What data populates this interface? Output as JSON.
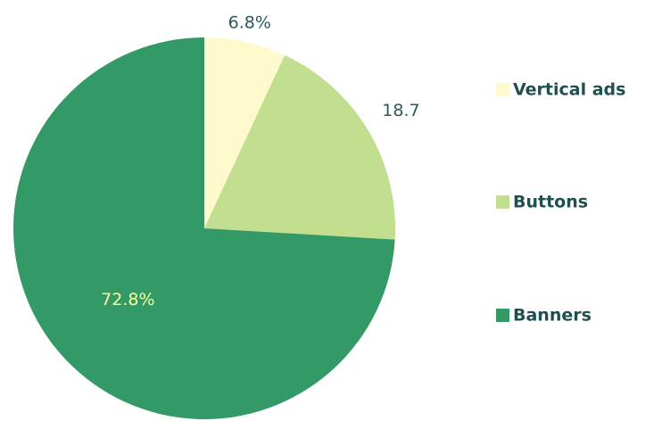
{
  "chart_data": {
    "type": "pie",
    "categories": [
      "Vertical ads",
      "Buttons",
      "Banners"
    ],
    "values": [
      6.8,
      18.7,
      72.8
    ],
    "value_labels": [
      "6.8%",
      "18.7",
      "72.8%"
    ],
    "colors": [
      "#fffacd",
      "#c2df8f",
      "#339966"
    ],
    "legend": "right"
  }
}
